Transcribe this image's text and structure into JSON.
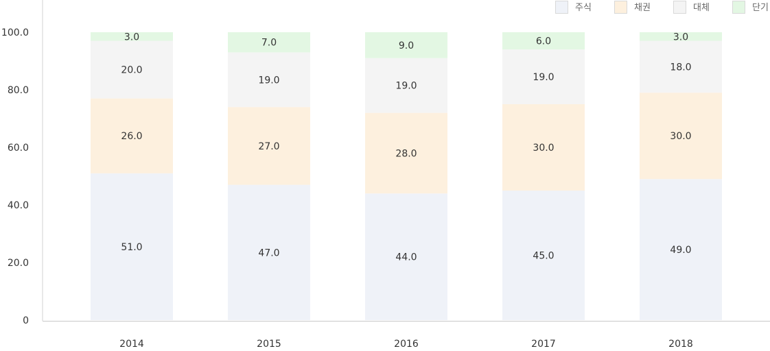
{
  "chart_data": {
    "type": "bar",
    "stacked": true,
    "categories": [
      "2014",
      "2015",
      "2016",
      "2017",
      "2018"
    ],
    "series": [
      {
        "name": "주식",
        "color": "#eff2f8",
        "values": [
          51.0,
          47.0,
          44.0,
          45.0,
          49.0
        ]
      },
      {
        "name": "채권",
        "color": "#fdf0de",
        "values": [
          26.0,
          27.0,
          28.0,
          30.0,
          30.0
        ]
      },
      {
        "name": "대체",
        "color": "#f4f4f4",
        "values": [
          20.0,
          19.0,
          19.0,
          19.0,
          18.0
        ]
      },
      {
        "name": "단기",
        "color": "#e3f7e3",
        "values": [
          3.0,
          7.0,
          9.0,
          6.0,
          3.0
        ]
      }
    ],
    "y_ticks": [
      "0",
      "20.0",
      "40.0",
      "60.0",
      "80.0",
      "100.0"
    ],
    "ylim": [
      0,
      100
    ],
    "legend_position": "top-right",
    "grid": false,
    "title": "",
    "xlabel": "",
    "ylabel": ""
  }
}
